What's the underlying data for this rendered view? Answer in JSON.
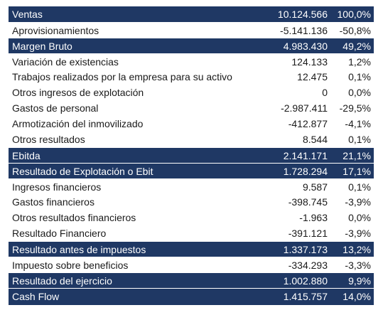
{
  "table": {
    "rows": [
      {
        "label": "Ventas",
        "value": "10.124.566",
        "pct": "100,0%",
        "highlight": true
      },
      {
        "label": "Aprovisionamientos",
        "value": "-5.141.136",
        "pct": "-50,8%",
        "highlight": false
      },
      {
        "label": "Margen Bruto",
        "value": "4.983.430",
        "pct": "49,2%",
        "highlight": true
      },
      {
        "label": "Variación de existencias",
        "value": "124.133",
        "pct": "1,2%",
        "highlight": false
      },
      {
        "label": "Trabajos realizados por la empresa para su activo",
        "value": "12.475",
        "pct": "0,1%",
        "highlight": false
      },
      {
        "label": "Otros ingresos de explotación",
        "value": "0",
        "pct": "0,0%",
        "highlight": false
      },
      {
        "label": "Gastos de personal",
        "value": "-2.987.411",
        "pct": "-29,5%",
        "highlight": false
      },
      {
        "label": "Armotización del inmovilizado",
        "value": "-412.877",
        "pct": "-4,1%",
        "highlight": false
      },
      {
        "label": "Otros resultados",
        "value": "8.544",
        "pct": "0,1%",
        "highlight": false
      },
      {
        "label": "Ebitda",
        "value": "2.141.171",
        "pct": "21,1%",
        "highlight": true
      },
      {
        "label": "Resultado de Explotación o Ebit",
        "value": "1.728.294",
        "pct": "17,1%",
        "highlight": true
      },
      {
        "label": "Ingresos financieros",
        "value": "9.587",
        "pct": "0,1%",
        "highlight": false
      },
      {
        "label": "Gastos financieros",
        "value": "-398.745",
        "pct": "-3,9%",
        "highlight": false
      },
      {
        "label": "Otros resultados financieros",
        "value": "-1.963",
        "pct": "0,0%",
        "highlight": false
      },
      {
        "label": "Resultado Financiero",
        "value": "-391.121",
        "pct": "-3,9%",
        "highlight": false
      },
      {
        "label": "Resultado antes de impuestos",
        "value": "1.337.173",
        "pct": "13,2%",
        "highlight": true
      },
      {
        "label": "Impuesto sobre beneficios",
        "value": "-334.293",
        "pct": "-3,3%",
        "highlight": false
      },
      {
        "label": "Resultado del ejercicio",
        "value": "1.002.880",
        "pct": "9,9%",
        "highlight": true
      },
      {
        "label": "Cash Flow",
        "value": "1.415.757",
        "pct": "14,0%",
        "highlight": true
      }
    ]
  },
  "colors": {
    "highlight_bg": "#1f3864",
    "highlight_text": "#ffffff",
    "text": "#1a1a1a"
  }
}
